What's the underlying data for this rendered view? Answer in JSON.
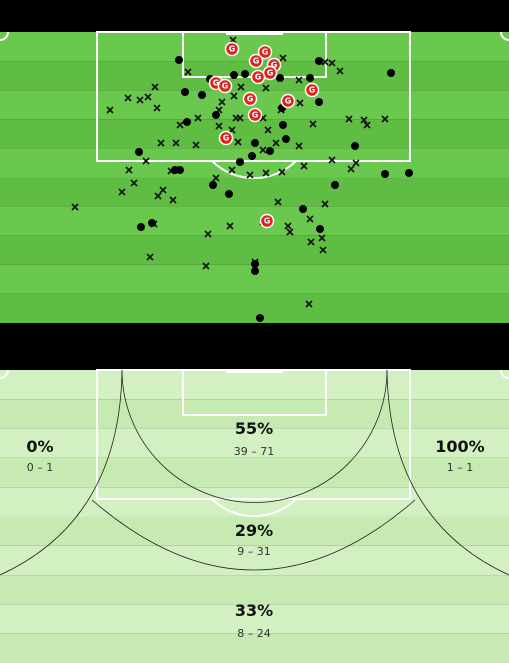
{
  "shot_marker_label": "G",
  "zones": [
    {
      "pct": "0%",
      "range": "0 – 1"
    },
    {
      "pct": "55%",
      "range": "39 – 71"
    },
    {
      "pct": "100%",
      "range": "1 – 1"
    },
    {
      "pct": "29%",
      "range": "9 – 31"
    },
    {
      "pct": "33%",
      "range": "8 – 24"
    }
  ]
}
